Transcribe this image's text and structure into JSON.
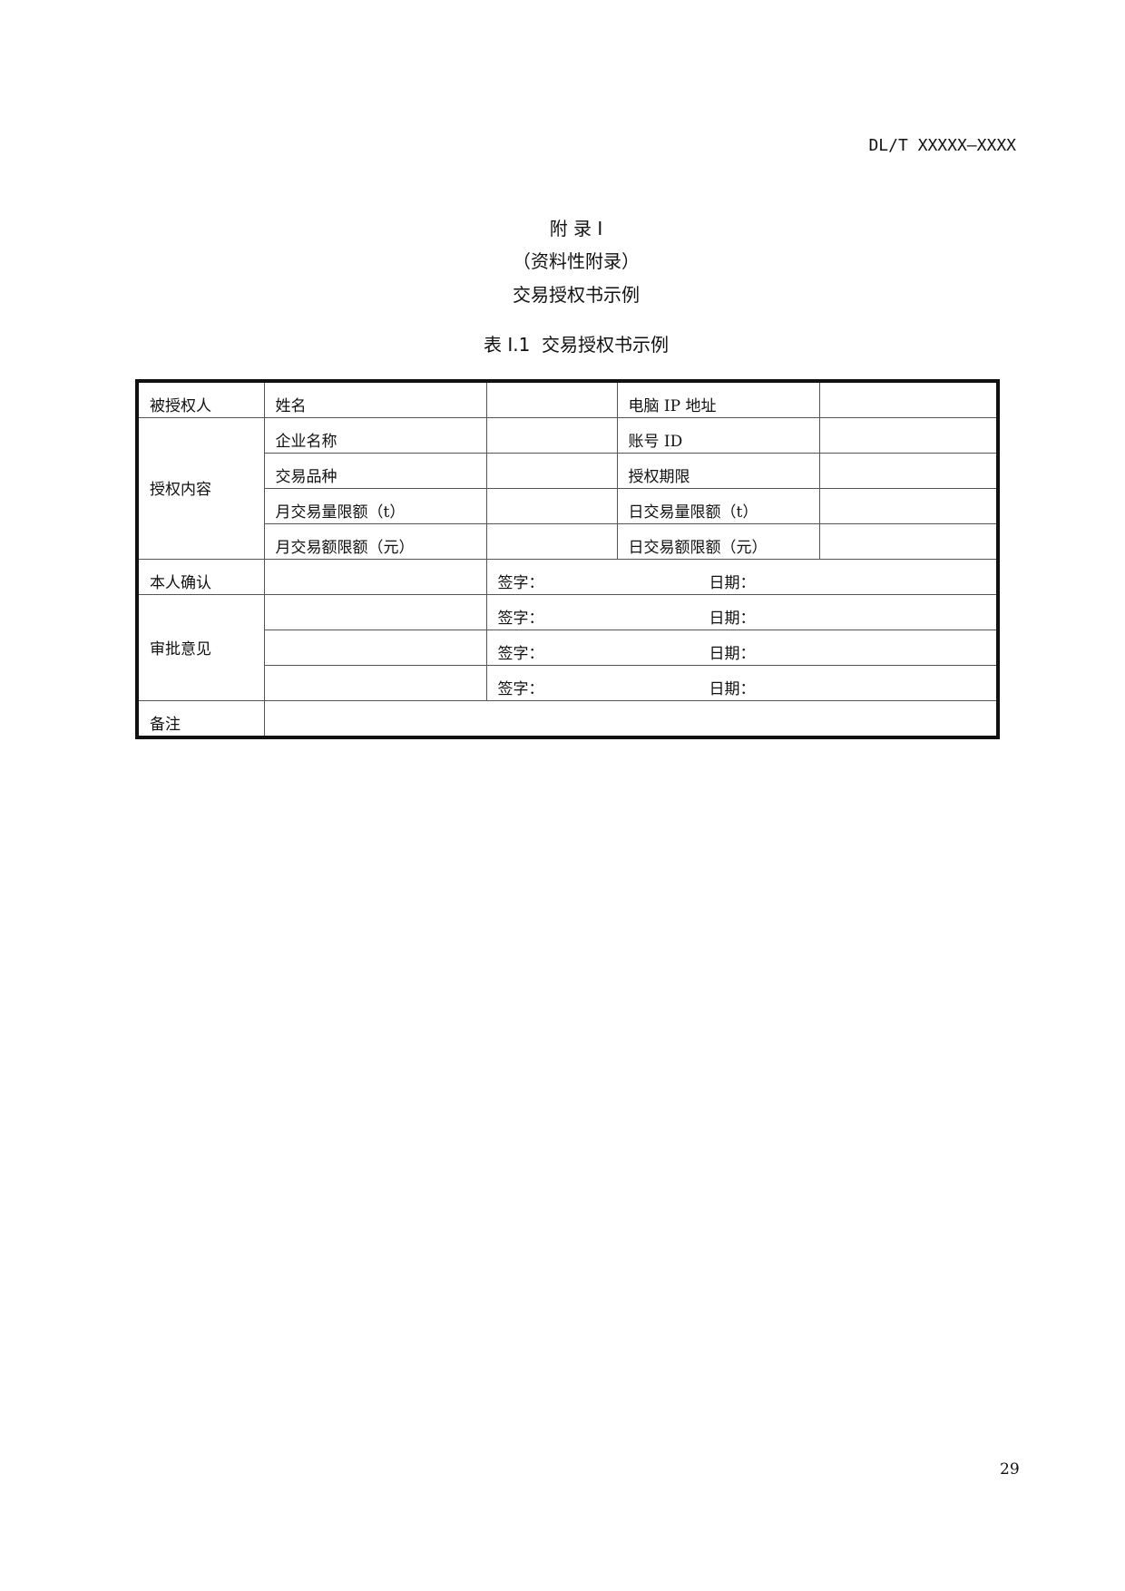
{
  "header": {
    "code": "DL/T XXXXX—XXXX"
  },
  "appendix": {
    "title": "附 录 I",
    "subtitle": "（资料性附录）",
    "name": "交易授权书示例"
  },
  "table": {
    "caption": "表 I.1  交易授权书示例",
    "grantee": "被授权人",
    "name": "姓名",
    "ip": "电脑 IP 地址",
    "content": "授权内容",
    "company": "企业名称",
    "account": "账号 ID",
    "variety": "交易品种",
    "period": "授权期限",
    "month_qty": "月交易量限额（t）",
    "day_qty": "日交易量限额（t）",
    "month_amt": "月交易额限额（元）",
    "day_amt": "日交易额限额（元）",
    "confirm": "本人确认",
    "approval": "审批意见",
    "sign": "签字：",
    "date": "日期：",
    "remarks": "备注"
  },
  "page_number": "29"
}
